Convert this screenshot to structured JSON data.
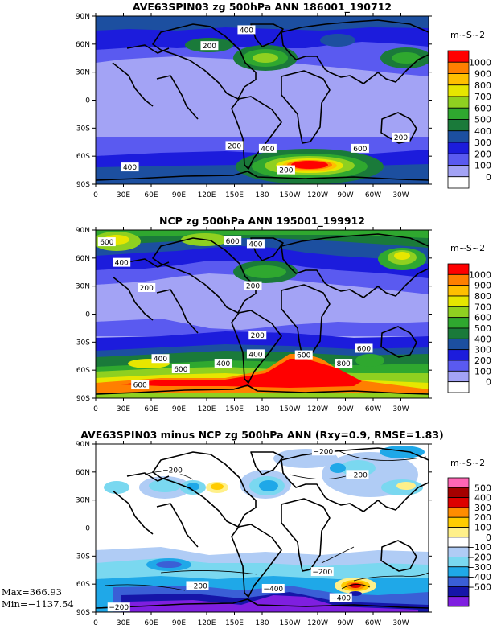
{
  "colors": {
    "full": [
      "#ffffff",
      "#a3a3f5",
      "#5a5af0",
      "#1c1cdc",
      "#1c4fa0",
      "#1a7a3a",
      "#2fa82f",
      "#8fd020",
      "#e6e600",
      "#ffbf00",
      "#ff7f00",
      "#ff0000"
    ],
    "diff": [
      "#7f1fe0",
      "#1515a8",
      "#3a5fd6",
      "#1fa8e8",
      "#7ad8f0",
      "#b0ccf5",
      "#ffffff",
      "#fff08a",
      "#ffcc00",
      "#ff8c00",
      "#dd0000",
      "#a50000",
      "#ff66b5"
    ]
  },
  "chart_data": [
    {
      "type": "heatmap",
      "title": "AVE63SPIN03 zg 500hPa ANN 186001_190712",
      "units": "m~S~2",
      "xticks": [
        "0",
        "30E",
        "60E",
        "90E",
        "120E",
        "150E",
        "180",
        "150W",
        "120W",
        "90W",
        "60W",
        "30W"
      ],
      "yticks": [
        "90N",
        "60N",
        "30N",
        "0",
        "30S",
        "60S",
        "90S"
      ],
      "colorbar": [
        "1000",
        "900",
        "800",
        "700",
        "600",
        "500",
        "400",
        "300",
        "200",
        "100",
        "0"
      ],
      "contour_labels": [
        {
          "text": "400",
          "lon": 163,
          "lat": 75
        },
        {
          "text": "200",
          "lon": 123,
          "lat": 58
        },
        {
          "text": "200",
          "lon": 150,
          "lat": -49
        },
        {
          "text": "400",
          "lon": 186,
          "lat": -52
        },
        {
          "text": "600",
          "lon": 286,
          "lat": -52
        },
        {
          "text": "200",
          "lon": 330,
          "lat": -40
        },
        {
          "text": "400",
          "lon": 37,
          "lat": -72
        },
        {
          "text": "200",
          "lon": 206,
          "lat": -75
        }
      ]
    },
    {
      "type": "heatmap",
      "title": "NCP zg 500hPa ANN 195001_199912",
      "units": "m~S~2",
      "xticks": [
        "0",
        "30E",
        "60E",
        "90E",
        "120E",
        "150E",
        "180",
        "150W",
        "120W",
        "90W",
        "60W",
        "30W"
      ],
      "yticks": [
        "90N",
        "60N",
        "30N",
        "0",
        "30S",
        "60S",
        "90S"
      ],
      "colorbar": [
        "1000",
        "900",
        "800",
        "700",
        "600",
        "500",
        "400",
        "300",
        "200",
        "100",
        "0"
      ],
      "contour_labels": [
        {
          "text": "600",
          "lon": 12,
          "lat": 77
        },
        {
          "text": "400",
          "lon": 28,
          "lat": 55
        },
        {
          "text": "600",
          "lon": 148,
          "lat": 78
        },
        {
          "text": "400",
          "lon": 173,
          "lat": 75
        },
        {
          "text": "200",
          "lon": 55,
          "lat": 28
        },
        {
          "text": "200",
          "lon": 170,
          "lat": 30
        },
        {
          "text": "200",
          "lon": 175,
          "lat": -23
        },
        {
          "text": "600",
          "lon": 290,
          "lat": -37
        },
        {
          "text": "400",
          "lon": 70,
          "lat": -48
        },
        {
          "text": "600",
          "lon": 92,
          "lat": -59
        },
        {
          "text": "400",
          "lon": 138,
          "lat": -53
        },
        {
          "text": "400",
          "lon": 173,
          "lat": -43
        },
        {
          "text": "600",
          "lon": 225,
          "lat": -44
        },
        {
          "text": "800",
          "lon": 268,
          "lat": -53
        },
        {
          "text": "600",
          "lon": 48,
          "lat": -76
        }
      ]
    },
    {
      "type": "heatmap",
      "title": "AVE63SPIN03 minus NCP zg 500hPa ANN (Rxy=0.9, RMSE=1.83)",
      "units": "m~S~2",
      "xticks": [
        "0",
        "30E",
        "60E",
        "90E",
        "120E",
        "150E",
        "180",
        "150W",
        "120W",
        "90W",
        "60W",
        "30W"
      ],
      "yticks": [
        "90N",
        "60N",
        "30N",
        "0",
        "30S",
        "60S",
        "90S"
      ],
      "colorbar": [
        "500",
        "400",
        "300",
        "200",
        "100",
        "0",
        "−100",
        "−200",
        "−300",
        "−400",
        "−500"
      ],
      "max_label": "Max=366.93",
      "min_label": "Min=−1137.54",
      "contour_labels": [
        {
          "text": "−200",
          "lon": 246,
          "lat": 82
        },
        {
          "text": "−200",
          "lon": 83,
          "lat": 62
        },
        {
          "text": "−200",
          "lon": 283,
          "lat": 57
        },
        {
          "text": "−200",
          "lon": 110,
          "lat": -62
        },
        {
          "text": "−200",
          "lon": 25,
          "lat": -85
        },
        {
          "text": "−400",
          "lon": 192,
          "lat": -65
        },
        {
          "text": "−200",
          "lon": 245,
          "lat": -47
        },
        {
          "text": "−400",
          "lon": 265,
          "lat": -75
        }
      ]
    }
  ]
}
